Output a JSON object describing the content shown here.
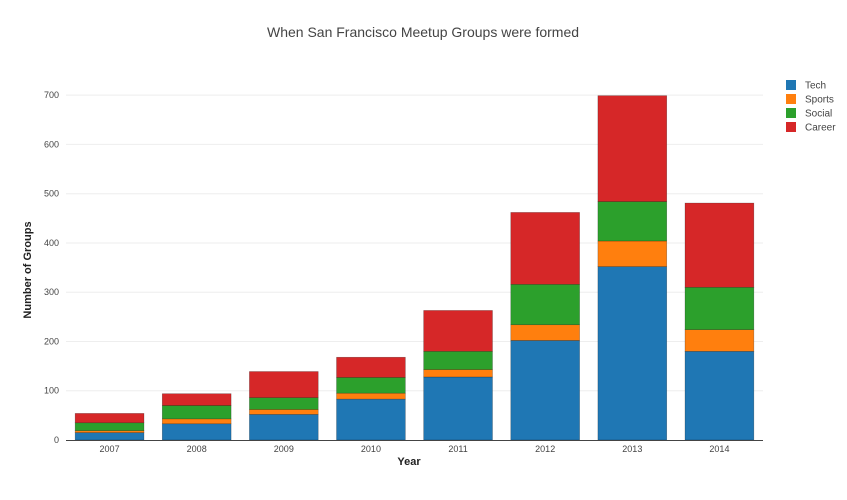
{
  "chart_data": {
    "type": "bar",
    "stacked": true,
    "title": "When San Francisco Meetup Groups were formed",
    "xlabel": "Year",
    "ylabel": "Number of Groups",
    "categories": [
      "2007",
      "2008",
      "2009",
      "2010",
      "2011",
      "2012",
      "2013",
      "2014"
    ],
    "ylim": [
      0,
      745
    ],
    "yticks": [
      0,
      100,
      200,
      300,
      400,
      500,
      600,
      700
    ],
    "grid": true,
    "legend_position": "top-right",
    "series": [
      {
        "name": "Tech",
        "color": "#1f77b4",
        "values": [
          15,
          33,
          52,
          83,
          128,
          202,
          352,
          180
        ]
      },
      {
        "name": "Sports",
        "color": "#ff7f0e",
        "values": [
          4,
          10,
          10,
          12,
          15,
          32,
          52,
          44
        ]
      },
      {
        "name": "Social",
        "color": "#2ca02c",
        "values": [
          16,
          27,
          24,
          32,
          37,
          82,
          80,
          86
        ]
      },
      {
        "name": "Career",
        "color": "#d62728",
        "values": [
          19,
          24,
          53,
          41,
          83,
          146,
          215,
          171
        ]
      }
    ]
  }
}
